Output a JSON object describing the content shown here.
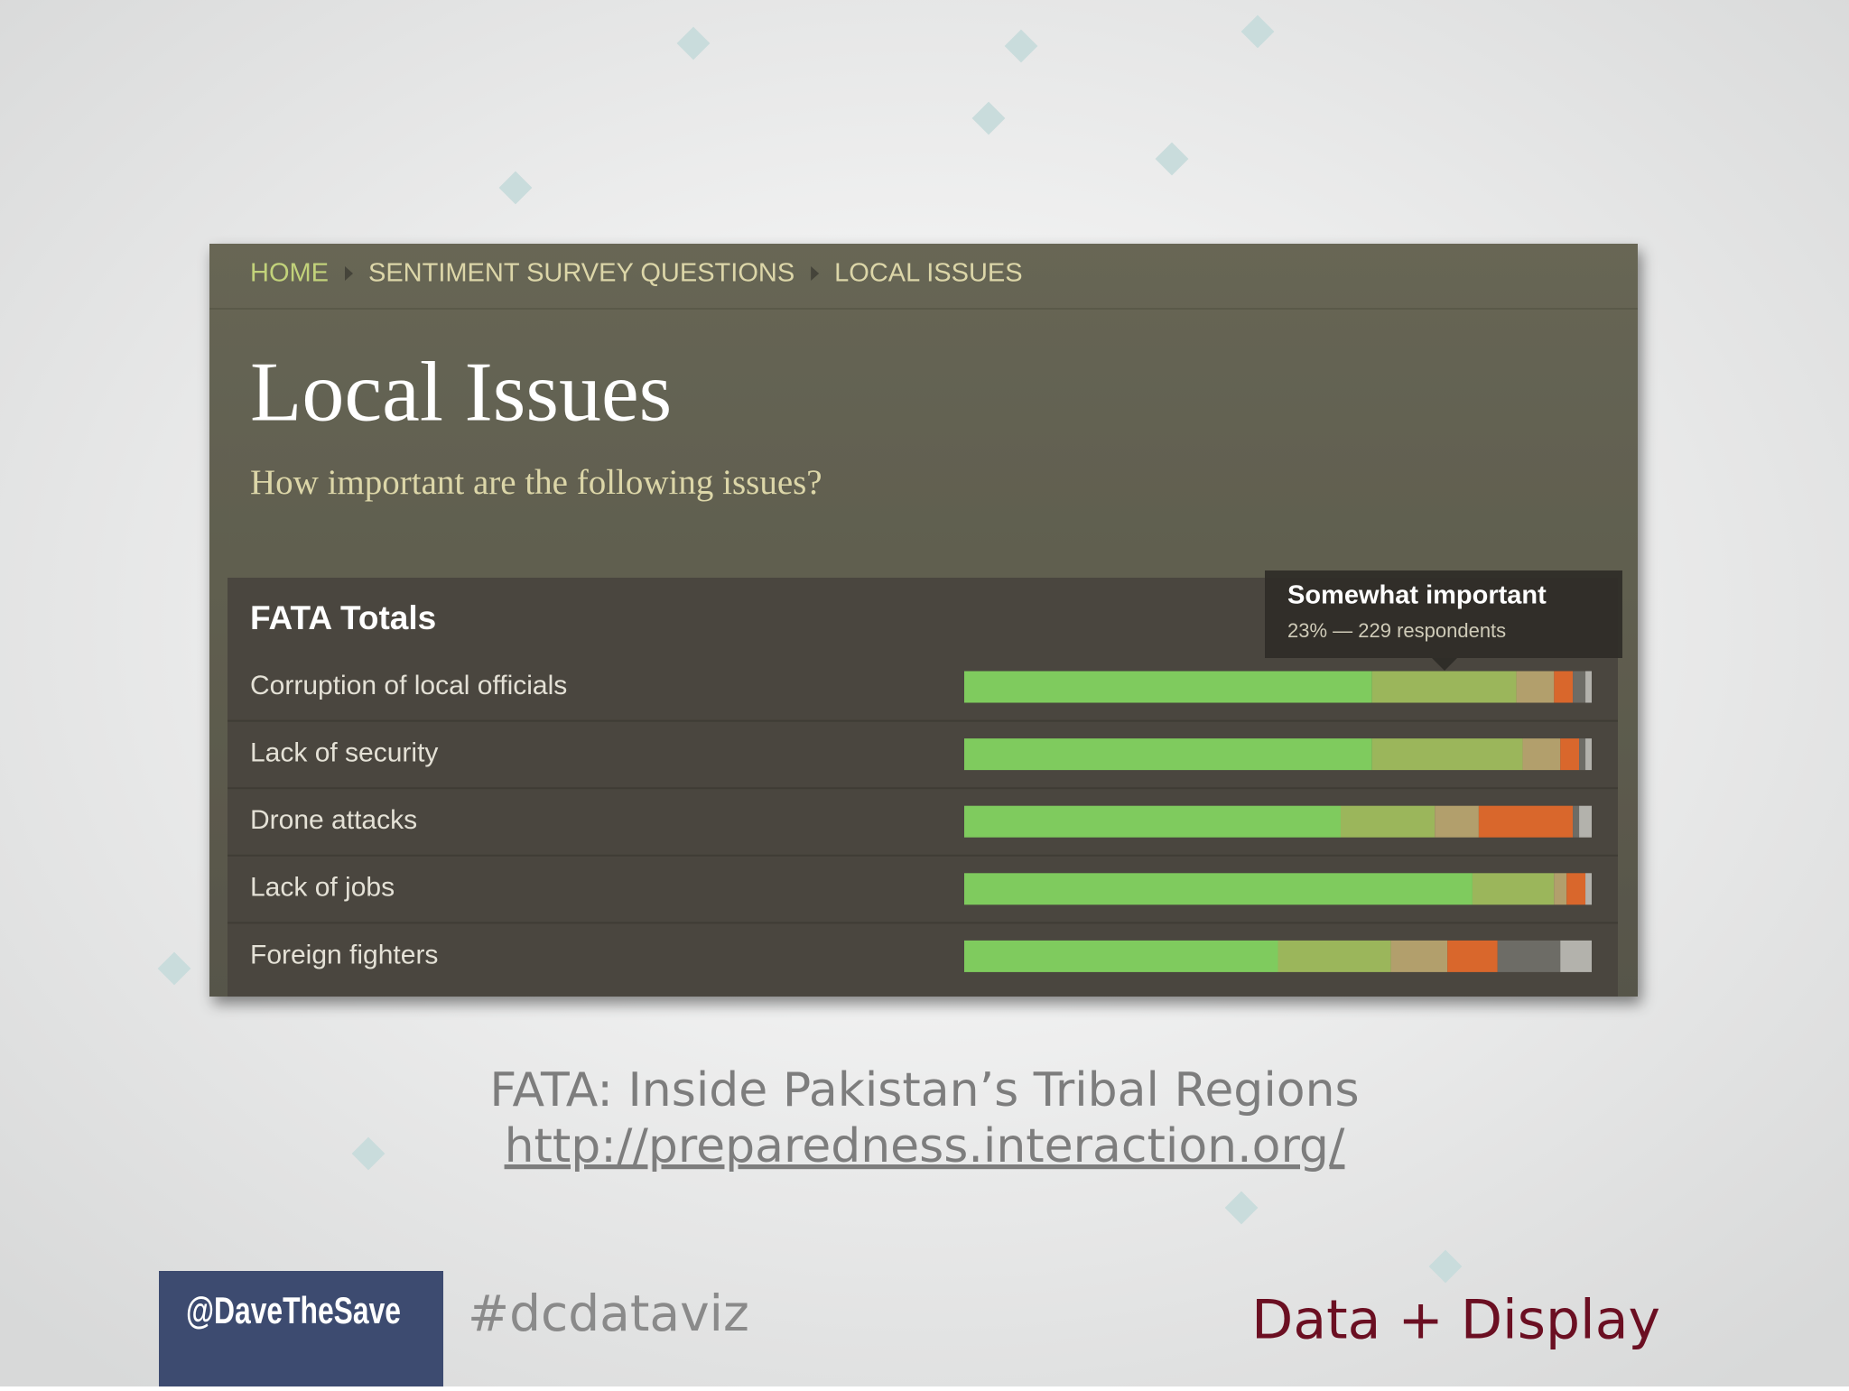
{
  "breadcrumb": [
    "HOME",
    "SENTIMENT SURVEY QUESTIONS",
    "LOCAL ISSUES"
  ],
  "chart_data": {
    "type": "bar",
    "orientation": "horizontal",
    "stacked": true,
    "title": "Local Issues",
    "subtitle": "How important are the following issues?",
    "heading": "FATA Totals",
    "categories": [
      "Corruption of local officials",
      "Lack of security",
      "Drone attacks",
      "Lack of jobs",
      "Foreign fighters"
    ],
    "xlim": [
      0,
      100
    ],
    "series": [
      {
        "color": "#7fcb5e",
        "values": [
          65,
          65,
          60,
          81,
          50
        ]
      },
      {
        "name": "Somewhat important",
        "color": "#9bb65b",
        "values": [
          23,
          24,
          15,
          13,
          18
        ]
      },
      {
        "color": "#b29f6c",
        "values": [
          6,
          6,
          7,
          2,
          9
        ]
      },
      {
        "color": "#d9672c",
        "values": [
          3,
          3,
          15,
          3,
          8
        ]
      },
      {
        "color": "#6d6c66",
        "values": [
          2,
          1,
          1,
          0,
          10
        ]
      },
      {
        "color": "#b3b2ac",
        "values": [
          1,
          1,
          2,
          1,
          5
        ]
      }
    ],
    "tooltip": {
      "title": "Somewhat important",
      "text": "23% — 229 respondents"
    }
  },
  "caption": {
    "title": "FATA: Inside Pakistan’s Tribal Regions",
    "link": "http://preparedness.interaction.org/"
  },
  "footer": {
    "handle": "@DaveTheSave",
    "hashtag": "#dcdataviz",
    "brand": "Data + Display"
  }
}
